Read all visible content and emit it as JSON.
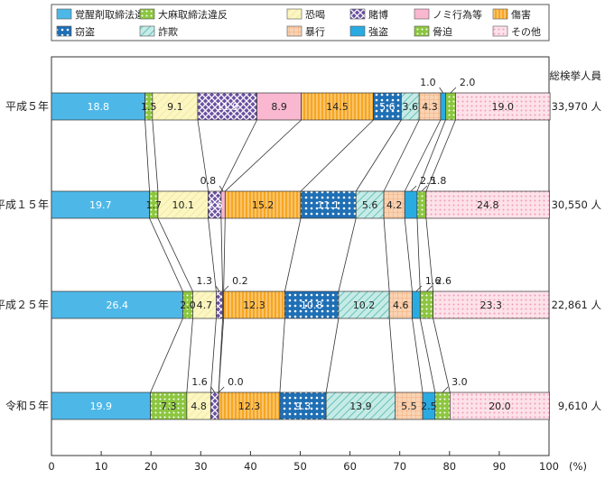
{
  "chart_data": {
    "type": "bar",
    "stacked": true,
    "orientation": "horizontal",
    "xlim": [
      0,
      100
    ],
    "x_ticks": [
      0,
      10,
      20,
      30,
      40,
      50,
      60,
      70,
      80,
      90,
      100
    ],
    "x_unit": "(%)",
    "total_header": "総検挙人員",
    "grid": false,
    "legend_position": "top",
    "categories": [
      "平成５年",
      "平成１５年",
      "平成２５年",
      "令和５年"
    ],
    "totals": [
      "33,970 人",
      "30,550 人",
      "22,861 人",
      "9,610 人"
    ],
    "series": [
      {
        "name": "覚醒剤取締法違反",
        "color": "#4db8e8",
        "pattern": "solid",
        "values": [
          18.8,
          19.7,
          26.4,
          19.9
        ]
      },
      {
        "name": "大麻取締法違反",
        "color": "#8cc63f",
        "pattern": "dots",
        "values": [
          1.5,
          1.7,
          2.0,
          7.3
        ]
      },
      {
        "name": "恐喝",
        "color": "#fbf5b4",
        "pattern": "diag-light",
        "values": [
          9.1,
          10.1,
          4.7,
          4.8
        ]
      },
      {
        "name": "賭博",
        "color": "#6a4fa0",
        "pattern": "cross",
        "values": [
          11.9,
          2.6,
          1.3,
          1.6
        ]
      },
      {
        "name": "ノミ行為等",
        "color": "#f9b8cf",
        "pattern": "solid",
        "values": [
          8.9,
          0.8,
          0.2,
          0.0
        ]
      },
      {
        "name": "傷害",
        "color": "#f6a623",
        "pattern": "vlines",
        "values": [
          14.5,
          15.2,
          12.3,
          12.3
        ]
      },
      {
        "name": "窃盗",
        "color": "#1f6fb5",
        "pattern": "dots-white",
        "values": [
          5.6,
          11.1,
          10.8,
          9.3
        ]
      },
      {
        "name": "詐欺",
        "color": "#b8e3de",
        "pattern": "diag-teal",
        "values": [
          3.6,
          5.6,
          10.2,
          13.9
        ]
      },
      {
        "name": "暴行",
        "color": "#f7c9a3",
        "pattern": "grid",
        "values": [
          4.3,
          4.2,
          4.6,
          5.5
        ]
      },
      {
        "name": "強盗",
        "color": "#29abe2",
        "pattern": "solid",
        "values": [
          1.0,
          2.5,
          1.6,
          2.5
        ]
      },
      {
        "name": "脅迫",
        "color": "#8cc63f",
        "pattern": "dots",
        "values": [
          2.0,
          1.8,
          2.6,
          3.0
        ]
      },
      {
        "name": "その他",
        "color": "#fcd5e0",
        "pattern": "dots-pink",
        "values": [
          19.0,
          24.8,
          23.3,
          20.0
        ]
      }
    ],
    "callouts": [
      [
        "",
        "",
        "",
        "",
        "",
        "",
        "",
        "",
        "",
        "1.0",
        "2.0",
        ""
      ],
      [
        "",
        "",
        "",
        "",
        "0.8",
        "",
        "",
        "",
        "",
        "2.5",
        "1.8",
        ""
      ],
      [
        "",
        "",
        "",
        "1.3",
        "0.2",
        "",
        "",
        "",
        "",
        "1.6",
        "2.6",
        ""
      ],
      [
        "",
        "",
        "",
        "1.6",
        "0.0",
        "",
        "",
        "",
        "",
        "",
        "3.0",
        ""
      ]
    ]
  }
}
